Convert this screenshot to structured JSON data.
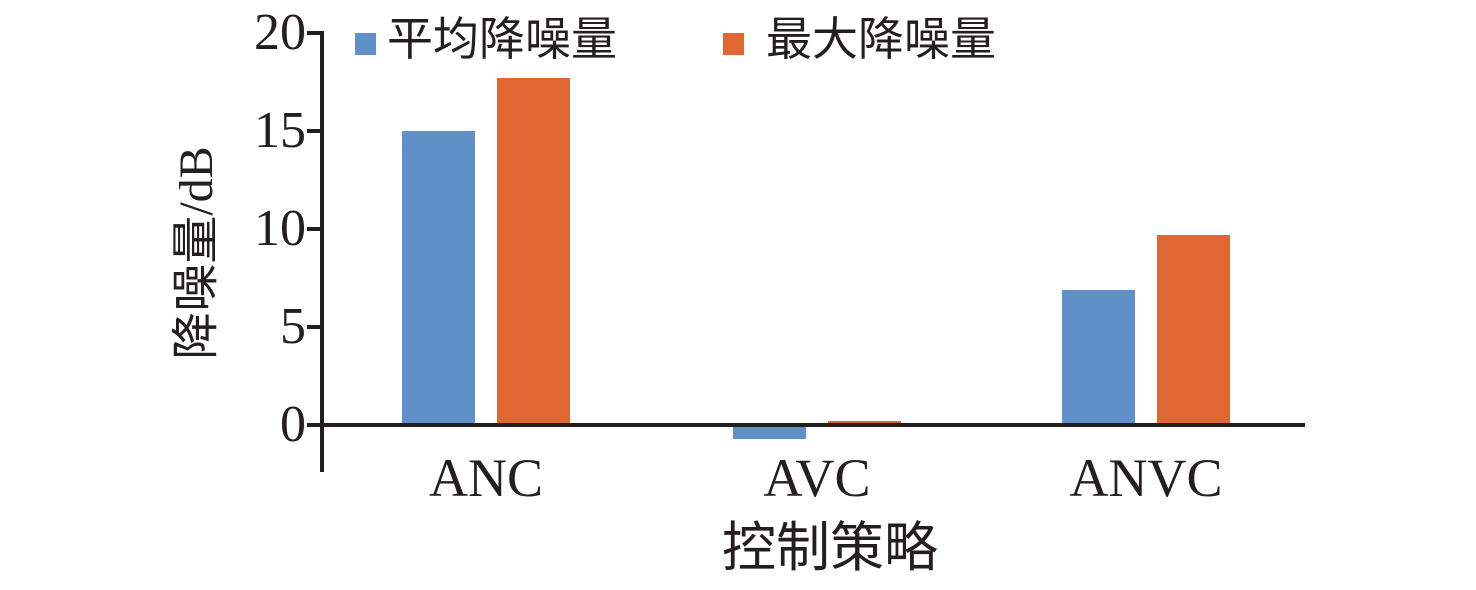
{
  "chart_data": {
    "type": "bar",
    "title": "",
    "xlabel": "控制策略",
    "ylabel": "降噪量/dB",
    "categories": [
      "ANC",
      "AVC",
      "ANVC"
    ],
    "series": [
      {
        "name": "平均降噪量",
        "color": "#5F91C8",
        "values": [
          15.0,
          -0.7,
          6.9
        ]
      },
      {
        "name": "最大降噪量",
        "color": "#E06632",
        "values": [
          17.7,
          0.2,
          9.7
        ]
      }
    ],
    "ylim": [
      0,
      20
    ],
    "yticks": [
      0,
      5,
      10,
      15,
      20
    ],
    "grid": false,
    "legend_position": "top"
  },
  "colors": {
    "axis": "#231F20",
    "background": "#FFFFFF",
    "series_average": "#5F91C8",
    "series_max": "#E06632"
  }
}
